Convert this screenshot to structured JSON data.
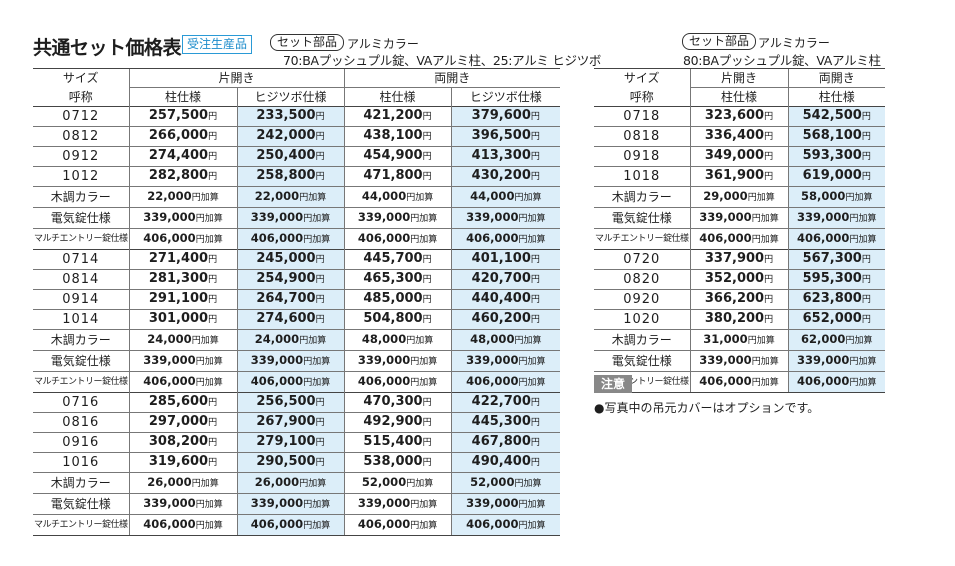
{
  "title": "共通セット価格表",
  "badge": "受注生産品",
  "set_label": "セット部品",
  "color_label": "アルミカラー",
  "left": {
    "caption": "70:BAプッシュプル錠、VAアルミ柱、25:アルミ ヒジツボ",
    "head_size": "サイズ",
    "head_code": "呼称",
    "group1": "片開き",
    "group2": "両開き",
    "sub": [
      "柱仕様",
      "ヒジツボ仕様",
      "柱仕様",
      "ヒジツボ仕様"
    ],
    "rows": [
      {
        "size": "0712",
        "v": [
          "257,500",
          "233,500",
          "421,200",
          "379,600"
        ]
      },
      {
        "size": "0812",
        "v": [
          "266,000",
          "242,000",
          "438,100",
          "396,500"
        ]
      },
      {
        "size": "0912",
        "v": [
          "274,400",
          "250,400",
          "454,900",
          "413,300"
        ]
      },
      {
        "size": "1012",
        "v": [
          "282,800",
          "258,800",
          "471,800",
          "430,200"
        ]
      },
      {
        "size": "木調カラー",
        "opt": true,
        "v": [
          "22,000",
          "22,000",
          "44,000",
          "44,000"
        ]
      },
      {
        "size": "電気錠仕様",
        "opt": true,
        "v": [
          "339,000",
          "339,000",
          "339,000",
          "339,000"
        ]
      },
      {
        "size": "マルチエントリー錠仕様",
        "opt": true,
        "small": true,
        "v": [
          "406,000",
          "406,000",
          "406,000",
          "406,000"
        ]
      },
      {
        "size": "0714",
        "v": [
          "271,400",
          "245,000",
          "445,700",
          "401,100"
        ]
      },
      {
        "size": "0814",
        "v": [
          "281,300",
          "254,900",
          "465,300",
          "420,700"
        ]
      },
      {
        "size": "0914",
        "v": [
          "291,100",
          "264,700",
          "485,000",
          "440,400"
        ]
      },
      {
        "size": "1014",
        "v": [
          "301,000",
          "274,600",
          "504,800",
          "460,200"
        ]
      },
      {
        "size": "木調カラー",
        "opt": true,
        "v": [
          "24,000",
          "24,000",
          "48,000",
          "48,000"
        ]
      },
      {
        "size": "電気錠仕様",
        "opt": true,
        "v": [
          "339,000",
          "339,000",
          "339,000",
          "339,000"
        ]
      },
      {
        "size": "マルチエントリー錠仕様",
        "opt": true,
        "small": true,
        "v": [
          "406,000",
          "406,000",
          "406,000",
          "406,000"
        ]
      },
      {
        "size": "0716",
        "v": [
          "285,600",
          "256,500",
          "470,300",
          "422,700"
        ]
      },
      {
        "size": "0816",
        "v": [
          "297,000",
          "267,900",
          "492,900",
          "445,300"
        ]
      },
      {
        "size": "0916",
        "v": [
          "308,200",
          "279,100",
          "515,400",
          "467,800"
        ]
      },
      {
        "size": "1016",
        "v": [
          "319,600",
          "290,500",
          "538,000",
          "490,400"
        ]
      },
      {
        "size": "木調カラー",
        "opt": true,
        "v": [
          "26,000",
          "26,000",
          "52,000",
          "52,000"
        ]
      },
      {
        "size": "電気錠仕様",
        "opt": true,
        "v": [
          "339,000",
          "339,000",
          "339,000",
          "339,000"
        ]
      },
      {
        "size": "マルチエントリー錠仕様",
        "opt": true,
        "small": true,
        "v": [
          "406,000",
          "406,000",
          "406,000",
          "406,000"
        ]
      }
    ]
  },
  "right": {
    "caption": "80:BAプッシュプル錠、VAアルミ柱",
    "head_size": "サイズ",
    "head_code": "呼称",
    "group1": "片開き",
    "group2": "両開き",
    "sub": [
      "柱仕様",
      "柱仕様"
    ],
    "rows": [
      {
        "size": "0718",
        "v": [
          "323,600",
          "542,500"
        ]
      },
      {
        "size": "0818",
        "v": [
          "336,400",
          "568,100"
        ]
      },
      {
        "size": "0918",
        "v": [
          "349,000",
          "593,300"
        ]
      },
      {
        "size": "1018",
        "v": [
          "361,900",
          "619,000"
        ]
      },
      {
        "size": "木調カラー",
        "opt": true,
        "v": [
          "29,000",
          "58,000"
        ]
      },
      {
        "size": "電気錠仕様",
        "opt": true,
        "v": [
          "339,000",
          "339,000"
        ]
      },
      {
        "size": "マルチエントリー錠仕様",
        "opt": true,
        "small": true,
        "v": [
          "406,000",
          "406,000"
        ]
      },
      {
        "size": "0720",
        "v": [
          "337,900",
          "567,300"
        ]
      },
      {
        "size": "0820",
        "v": [
          "352,000",
          "595,300"
        ]
      },
      {
        "size": "0920",
        "v": [
          "366,200",
          "623,800"
        ]
      },
      {
        "size": "1020",
        "v": [
          "380,200",
          "652,000"
        ]
      },
      {
        "size": "木調カラー",
        "opt": true,
        "v": [
          "31,000",
          "62,000"
        ]
      },
      {
        "size": "電気錠仕様",
        "opt": true,
        "v": [
          "339,000",
          "339,000"
        ]
      },
      {
        "size": "マルチエントリー錠仕様",
        "opt": true,
        "small": true,
        "v": [
          "406,000",
          "406,000"
        ]
      }
    ]
  },
  "yen_unit": "円",
  "addon_unit": "円加算",
  "note": {
    "heading": "注意",
    "text": "●写真中の吊元カバーはオプションです。"
  }
}
